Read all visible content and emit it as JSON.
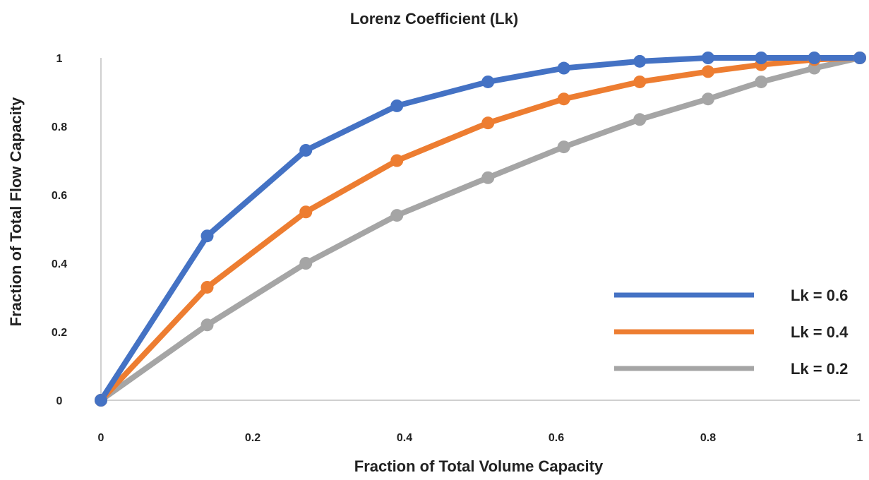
{
  "chart_data": {
    "type": "line",
    "title": "Lorenz Coefficient (Lk)",
    "xlabel": "Fraction of Total Volume Capacity",
    "ylabel": "Fraction of Total Flow Capacity",
    "xlim": [
      0,
      1
    ],
    "ylim": [
      0,
      1
    ],
    "xticks": [
      "0",
      "0.2",
      "0.4",
      "0.6",
      "0.8",
      "1"
    ],
    "yticks": [
      "0",
      "0.2",
      "0.4",
      "0.6",
      "0.8",
      "1"
    ],
    "grid": false,
    "legend_position": "bottom-right",
    "series": [
      {
        "name": "Lk = 0.6",
        "color": "#4472C4",
        "x": [
          0,
          0.14,
          0.27,
          0.39,
          0.51,
          0.61,
          0.71,
          0.8,
          0.87,
          0.94,
          1.0
        ],
        "y": [
          0,
          0.48,
          0.73,
          0.86,
          0.93,
          0.97,
          0.99,
          1.0,
          1.0,
          1.0,
          1.0
        ]
      },
      {
        "name": "Lk = 0.4",
        "color": "#ED7D31",
        "x": [
          0,
          0.14,
          0.27,
          0.39,
          0.51,
          0.61,
          0.71,
          0.8,
          0.87,
          0.94,
          1.0
        ],
        "y": [
          0,
          0.33,
          0.55,
          0.7,
          0.81,
          0.88,
          0.93,
          0.96,
          0.98,
          0.995,
          1.0
        ]
      },
      {
        "name": "Lk = 0.2",
        "color": "#A5A5A5",
        "x": [
          0,
          0.14,
          0.27,
          0.39,
          0.51,
          0.61,
          0.71,
          0.8,
          0.87,
          0.94,
          1.0
        ],
        "y": [
          0,
          0.22,
          0.4,
          0.54,
          0.65,
          0.74,
          0.82,
          0.88,
          0.93,
          0.97,
          1.0
        ]
      }
    ]
  }
}
